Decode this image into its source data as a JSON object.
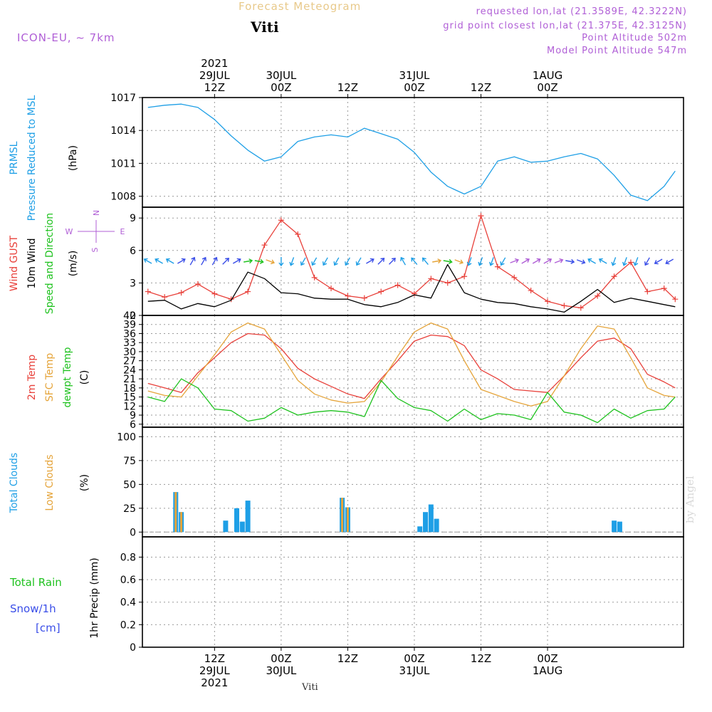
{
  "header": {
    "title": "Forecast Meteogram",
    "station": "Viti",
    "model": "ICON-EU, ~ 7km",
    "requested": "requested lon,lat (21.3589E, 42.3222N)",
    "grid_point": "grid point closest lon,lat (21.375E, 42.3125N)",
    "point_altitude": "Point Altitude 502m",
    "model_altitude": "Model Point Altitude 547m",
    "byline": "by Angel",
    "bottom_label": "Viti"
  },
  "colors": {
    "pressure": "#1e9fe6",
    "gust": "#e8403a",
    "wind": "#000000",
    "temp2m": "#e8403a",
    "sfc_temp": "#e5a43a",
    "dewpoint": "#1fc21f",
    "total_clouds": "#1e9fe6",
    "low_clouds": "#e5a43a",
    "rain": "#1fc21f",
    "snow": "#3a4ee8",
    "axis_label_purple": "#b05fd6"
  },
  "chart_data": [
    {
      "type": "line",
      "panel": "pressure",
      "ylabels": [
        {
          "text": "PRMSL",
          "color": "pressure"
        },
        {
          "text": "Pressure Reduced to MSL",
          "color": "pressure"
        },
        {
          "text": "(hPa)",
          "color": "wind"
        }
      ],
      "ylim": [
        1007,
        1017
      ],
      "yticks": [
        1008,
        1011,
        1014,
        1017
      ],
      "grid": true,
      "series": [
        {
          "name": "PRMSL",
          "color": "pressure",
          "x": [
            0,
            3,
            6,
            9,
            12,
            15,
            18,
            21,
            24,
            27,
            30,
            33,
            36,
            39,
            42,
            45,
            48,
            51,
            54,
            57,
            60,
            63,
            66,
            69,
            72,
            75,
            78,
            81,
            84,
            87,
            90,
            93,
            95
          ],
          "values": [
            1016.1,
            1016.3,
            1016.4,
            1016.1,
            1015.0,
            1013.5,
            1012.2,
            1011.2,
            1011.6,
            1013.0,
            1013.4,
            1013.6,
            1013.4,
            1014.2,
            1013.7,
            1013.2,
            1012.0,
            1010.2,
            1008.9,
            1008.2,
            1008.9,
            1011.2,
            1011.6,
            1011.1,
            1011.2,
            1011.6,
            1011.9,
            1011.4,
            1009.9,
            1008.1,
            1007.6,
            1008.9,
            1010.3
          ]
        }
      ]
    },
    {
      "type": "line",
      "panel": "wind",
      "ylabels": [
        {
          "text": "Wind GUST",
          "color": "gust"
        },
        {
          "text": "10m Wind",
          "color": "wind"
        },
        {
          "text": "Speed and Direction",
          "color": "rain"
        },
        {
          "text": "(m/s)",
          "color": "wind"
        }
      ],
      "compass": {
        "top": "N",
        "left": "W",
        "right": "E",
        "bottom": "S",
        "color": "axis_label_purple"
      },
      "ylim": [
        0,
        10
      ],
      "yticks": [
        0,
        3,
        6,
        9
      ],
      "grid": true,
      "series": [
        {
          "name": "Wind GUST",
          "color": "gust",
          "markers": "plus",
          "x": [
            0,
            3,
            6,
            9,
            12,
            15,
            18,
            21,
            24,
            27,
            30,
            33,
            36,
            39,
            42,
            45,
            48,
            51,
            54,
            57,
            60,
            63,
            66,
            69,
            72,
            75,
            78,
            81,
            84,
            87,
            90,
            93,
            95
          ],
          "values": [
            2.2,
            1.7,
            2.1,
            2.9,
            2.0,
            1.5,
            2.2,
            6.5,
            8.8,
            7.5,
            3.5,
            2.5,
            1.8,
            1.6,
            2.2,
            2.8,
            2.0,
            3.4,
            3.0,
            3.6,
            9.2,
            4.5,
            3.5,
            2.3,
            1.3,
            0.9,
            0.7,
            1.8,
            3.6,
            4.9,
            2.2,
            2.5,
            1.5
          ]
        },
        {
          "name": "10m Wind",
          "color": "wind",
          "x": [
            0,
            3,
            6,
            9,
            12,
            15,
            18,
            21,
            24,
            27,
            30,
            33,
            36,
            39,
            42,
            45,
            48,
            51,
            54,
            57,
            60,
            63,
            66,
            69,
            72,
            75,
            78,
            81,
            84,
            87,
            90,
            93,
            95
          ],
          "values": [
            1.3,
            1.4,
            0.6,
            1.1,
            0.8,
            1.4,
            4.0,
            3.4,
            2.1,
            2.0,
            1.6,
            1.5,
            1.5,
            1.0,
            0.8,
            1.2,
            1.9,
            1.6,
            4.7,
            2.1,
            1.5,
            1.2,
            1.1,
            0.8,
            0.6,
            0.3,
            1.3,
            2.4,
            1.2,
            1.6,
            1.3,
            1.0,
            0.8
          ]
        }
      ],
      "wind_barbs": [
        {
          "x": 0,
          "dir": 300,
          "color": "total_clouds"
        },
        {
          "x": 2,
          "dir": 300,
          "color": "total_clouds"
        },
        {
          "x": 4,
          "dir": 300,
          "color": "total_clouds"
        },
        {
          "x": 6,
          "dir": 60,
          "color": "snow"
        },
        {
          "x": 8,
          "dir": 30,
          "color": "snow"
        },
        {
          "x": 10,
          "dir": 30,
          "color": "snow"
        },
        {
          "x": 12,
          "dir": 30,
          "color": "snow"
        },
        {
          "x": 14,
          "dir": 45,
          "color": "snow"
        },
        {
          "x": 16,
          "dir": 60,
          "color": "snow"
        },
        {
          "x": 18,
          "dir": 80,
          "color": "rain"
        },
        {
          "x": 20,
          "dir": 100,
          "color": "rain"
        },
        {
          "x": 22,
          "dir": 110,
          "color": "sfc_temp"
        },
        {
          "x": 24,
          "dir": 180,
          "color": "total_clouds"
        },
        {
          "x": 26,
          "dir": 200,
          "color": "total_clouds"
        },
        {
          "x": 28,
          "dir": 210,
          "color": "total_clouds"
        },
        {
          "x": 30,
          "dir": 210,
          "color": "total_clouds"
        },
        {
          "x": 32,
          "dir": 210,
          "color": "total_clouds"
        },
        {
          "x": 34,
          "dir": 210,
          "color": "total_clouds"
        },
        {
          "x": 36,
          "dir": 210,
          "color": "total_clouds"
        },
        {
          "x": 38,
          "dir": 210,
          "color": "total_clouds"
        },
        {
          "x": 40,
          "dir": 60,
          "color": "snow"
        },
        {
          "x": 42,
          "dir": 45,
          "color": "snow"
        },
        {
          "x": 44,
          "dir": 45,
          "color": "snow"
        },
        {
          "x": 46,
          "dir": 330,
          "color": "total_clouds"
        },
        {
          "x": 48,
          "dir": 320,
          "color": "total_clouds"
        },
        {
          "x": 50,
          "dir": 320,
          "color": "total_clouds"
        },
        {
          "x": 52,
          "dir": 80,
          "color": "sfc_temp"
        },
        {
          "x": 54,
          "dir": 100,
          "color": "rain"
        },
        {
          "x": 56,
          "dir": 110,
          "color": "sfc_temp"
        },
        {
          "x": 58,
          "dir": 200,
          "color": "total_clouds"
        },
        {
          "x": 60,
          "dir": 200,
          "color": "total_clouds"
        },
        {
          "x": 62,
          "dir": 200,
          "color": "total_clouds"
        },
        {
          "x": 64,
          "dir": 210,
          "color": "total_clouds"
        },
        {
          "x": 66,
          "dir": 70,
          "color": "axis_label_purple"
        },
        {
          "x": 68,
          "dir": 60,
          "color": "axis_label_purple"
        },
        {
          "x": 70,
          "dir": 60,
          "color": "axis_label_purple"
        },
        {
          "x": 72,
          "dir": 60,
          "color": "axis_label_purple"
        },
        {
          "x": 74,
          "dir": 70,
          "color": "axis_label_purple"
        },
        {
          "x": 76,
          "dir": 100,
          "color": "snow"
        },
        {
          "x": 78,
          "dir": 110,
          "color": "snow"
        },
        {
          "x": 80,
          "dir": 300,
          "color": "total_clouds"
        },
        {
          "x": 82,
          "dir": 300,
          "color": "total_clouds"
        },
        {
          "x": 84,
          "dir": 200,
          "color": "total_clouds"
        },
        {
          "x": 86,
          "dir": 200,
          "color": "total_clouds"
        },
        {
          "x": 88,
          "dir": 200,
          "color": "total_clouds"
        },
        {
          "x": 90,
          "dir": 210,
          "color": "snow"
        },
        {
          "x": 92,
          "dir": 240,
          "color": "snow"
        },
        {
          "x": 94,
          "dir": 240,
          "color": "snow"
        }
      ]
    },
    {
      "type": "line",
      "panel": "temperature",
      "ylabels": [
        {
          "text": "2m Temp",
          "color": "temp2m"
        },
        {
          "text": "SFC Temp",
          "color": "sfc_temp"
        },
        {
          "text": "dewpt Temp",
          "color": "dewpoint"
        },
        {
          "text": "(C)",
          "color": "wind"
        }
      ],
      "ylim": [
        5,
        42
      ],
      "yticks": [
        6,
        9,
        12,
        15,
        18,
        21,
        24,
        27,
        30,
        33,
        36,
        39,
        42
      ],
      "grid": true,
      "series": [
        {
          "name": "2m Temp",
          "color": "temp2m",
          "x": [
            0,
            3,
            6,
            9,
            12,
            15,
            18,
            21,
            24,
            27,
            30,
            33,
            36,
            39,
            42,
            45,
            48,
            51,
            54,
            57,
            60,
            63,
            66,
            69,
            72,
            75,
            78,
            81,
            84,
            87,
            90,
            93,
            95
          ],
          "values": [
            19.5,
            18,
            16.5,
            23,
            28,
            33,
            36,
            35.5,
            31,
            24.5,
            21,
            18.5,
            16,
            14.5,
            21,
            27,
            33.5,
            35.5,
            35,
            32,
            24,
            21,
            17.5,
            17,
            16.5,
            22,
            28,
            33.5,
            34.5,
            31,
            22.5,
            20,
            18
          ]
        },
        {
          "name": "SFC Temp",
          "color": "sfc_temp",
          "x": [
            0,
            3,
            6,
            9,
            12,
            15,
            18,
            21,
            24,
            27,
            30,
            33,
            36,
            39,
            42,
            45,
            48,
            51,
            54,
            57,
            60,
            63,
            66,
            69,
            72,
            75,
            78,
            81,
            84,
            87,
            90,
            93,
            95
          ],
          "values": [
            17,
            15.5,
            15,
            22,
            29,
            36.5,
            39.5,
            37.5,
            29,
            20.5,
            16,
            14,
            13,
            13.5,
            20,
            28.5,
            36.5,
            39.5,
            37.5,
            27,
            17.5,
            15.5,
            13.5,
            12,
            13.5,
            22,
            31,
            38.5,
            37.5,
            28,
            18,
            15.5,
            15
          ]
        },
        {
          "name": "dewpt Temp",
          "color": "dewpoint",
          "x": [
            0,
            3,
            6,
            9,
            12,
            15,
            18,
            21,
            24,
            27,
            30,
            33,
            36,
            39,
            42,
            45,
            48,
            51,
            54,
            57,
            60,
            63,
            66,
            69,
            72,
            75,
            78,
            81,
            84,
            87,
            90,
            93,
            95
          ],
          "values": [
            15,
            13.5,
            21,
            18,
            11,
            10.5,
            7,
            8,
            11.5,
            9,
            10,
            10.5,
            10,
            8.5,
            20.5,
            14.5,
            11.5,
            10.5,
            7,
            11,
            7.5,
            9.5,
            9,
            7.5,
            16.5,
            10,
            9,
            6.5,
            11,
            8,
            10.5,
            11,
            15
          ]
        }
      ]
    },
    {
      "type": "bar",
      "panel": "clouds",
      "ylabels": [
        {
          "text": "Total Clouds",
          "color": "total_clouds"
        },
        {
          "text": "Low Clouds",
          "color": "low_clouds"
        },
        {
          "text": "(%)",
          "color": "wind"
        }
      ],
      "ylim": [
        -5,
        110
      ],
      "yticks": [
        0,
        25,
        50,
        75,
        100
      ],
      "grid": true,
      "series": [
        {
          "name": "Total Clouds",
          "color": "total_clouds",
          "x": [
            5,
            6,
            14,
            16,
            17,
            18,
            35,
            36,
            49,
            50,
            51,
            52,
            84,
            85
          ],
          "values": [
            42,
            21,
            12,
            25,
            11,
            33,
            36,
            26,
            6,
            21,
            29,
            14,
            12,
            11
          ]
        },
        {
          "name": "Low Clouds",
          "color": "low_clouds",
          "x": [
            5,
            6,
            35,
            36
          ],
          "values": [
            42,
            21,
            36,
            26
          ]
        }
      ]
    },
    {
      "type": "bar",
      "panel": "precip",
      "ylabels": [
        {
          "text": "1hr Precip (mm)",
          "color": "wind"
        }
      ],
      "left_labels": [
        {
          "text": "Total  Rain",
          "color": "rain"
        },
        {
          "text": "Snow/1h",
          "color": "snow"
        },
        {
          "text": "[cm]",
          "color": "snow"
        }
      ],
      "ylim": [
        0,
        0.98
      ],
      "yticks": [
        0,
        0.2,
        0.4,
        0.6,
        0.8
      ],
      "grid": true,
      "series": [
        {
          "name": "Total Rain",
          "color": "rain",
          "x": [],
          "values": []
        },
        {
          "name": "Snow/1h",
          "color": "snow",
          "x": [],
          "values": []
        }
      ]
    }
  ],
  "time_axis": {
    "unit": "hours from 29JUL 00Z",
    "range": [
      -1,
      96.5
    ],
    "top_ticks": [
      {
        "at": 12,
        "lines": [
          "2021",
          "29JUL",
          "12Z"
        ]
      },
      {
        "at": 24,
        "lines": [
          "30JUL",
          "00Z"
        ]
      },
      {
        "at": 36,
        "lines": [
          "12Z"
        ]
      },
      {
        "at": 48,
        "lines": [
          "31JUL",
          "00Z"
        ]
      },
      {
        "at": 60,
        "lines": [
          "12Z"
        ]
      },
      {
        "at": 72,
        "lines": [
          "1AUG",
          "00Z"
        ]
      }
    ],
    "bottom_ticks": [
      {
        "at": 12,
        "lines": [
          "12Z",
          "29JUL",
          "2021"
        ]
      },
      {
        "at": 24,
        "lines": [
          "00Z",
          "30JUL"
        ]
      },
      {
        "at": 36,
        "lines": [
          "12Z"
        ]
      },
      {
        "at": 48,
        "lines": [
          "00Z",
          "31JUL"
        ]
      },
      {
        "at": 60,
        "lines": [
          "12Z"
        ]
      },
      {
        "at": 72,
        "lines": [
          "00Z",
          "1AUG"
        ]
      }
    ]
  }
}
